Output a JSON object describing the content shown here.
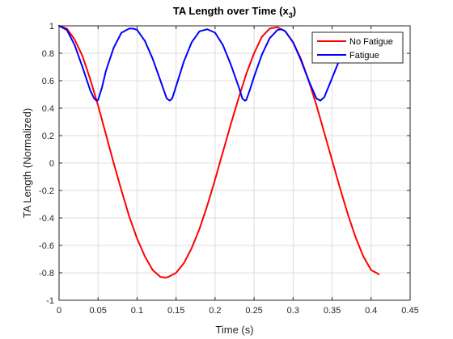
{
  "chart_data": {
    "type": "line",
    "title_main": "TA Length over Time (x",
    "title_sub": "3",
    "title_close": ")",
    "xlabel": "Time (s)",
    "ylabel": "TA Length (Normalized)",
    "xlim": [
      0,
      0.45
    ],
    "ylim": [
      -1,
      1
    ],
    "xticks": [
      0,
      0.05,
      0.1,
      0.15,
      0.2,
      0.25,
      0.3,
      0.35,
      0.4,
      0.45
    ],
    "xtick_labels": [
      "0",
      "0.05",
      "0.1",
      "0.15",
      "0.2",
      "0.25",
      "0.3",
      "0.35",
      "0.4",
      "0.45"
    ],
    "yticks": [
      -1,
      -0.8,
      -0.6,
      -0.4,
      -0.2,
      0,
      0.2,
      0.4,
      0.6,
      0.8,
      1
    ],
    "ytick_labels": [
      "-1",
      "-0.8",
      "-0.6",
      "-0.4",
      "-0.2",
      "0",
      "0.2",
      "0.4",
      "0.6",
      "0.8",
      "1"
    ],
    "grid": true,
    "legend_position": "top-right",
    "series": [
      {
        "name": "No Fatigue",
        "color": "#ff0000",
        "x": [
          0,
          0.01,
          0.02,
          0.03,
          0.04,
          0.05,
          0.06,
          0.07,
          0.08,
          0.09,
          0.1,
          0.11,
          0.12,
          0.13,
          0.137,
          0.14,
          0.15,
          0.16,
          0.17,
          0.18,
          0.19,
          0.2,
          0.21,
          0.22,
          0.23,
          0.24,
          0.25,
          0.26,
          0.27,
          0.28,
          0.29,
          0.3,
          0.31,
          0.32,
          0.33,
          0.34,
          0.35,
          0.36,
          0.37,
          0.38,
          0.39,
          0.4,
          0.41
        ],
        "y": [
          1.0,
          0.98,
          0.9,
          0.78,
          0.61,
          0.42,
          0.21,
          0.0,
          -0.2,
          -0.39,
          -0.55,
          -0.68,
          -0.78,
          -0.83,
          -0.835,
          -0.83,
          -0.8,
          -0.73,
          -0.62,
          -0.48,
          -0.31,
          -0.12,
          0.08,
          0.28,
          0.47,
          0.65,
          0.8,
          0.92,
          0.98,
          0.99,
          0.96,
          0.88,
          0.76,
          0.6,
          0.42,
          0.22,
          0.02,
          -0.18,
          -0.37,
          -0.54,
          -0.68,
          -0.78,
          -0.81
        ]
      },
      {
        "name": "Fatigue",
        "color": "#0000ff",
        "x": [
          0,
          0.01,
          0.02,
          0.03,
          0.04,
          0.045,
          0.048,
          0.05,
          0.055,
          0.06,
          0.07,
          0.08,
          0.09,
          0.095,
          0.1,
          0.11,
          0.12,
          0.13,
          0.138,
          0.142,
          0.145,
          0.15,
          0.16,
          0.17,
          0.18,
          0.19,
          0.2,
          0.21,
          0.22,
          0.23,
          0.235,
          0.238,
          0.24,
          0.245,
          0.25,
          0.26,
          0.27,
          0.28,
          0.285,
          0.29,
          0.3,
          0.31,
          0.32,
          0.33,
          0.335,
          0.34,
          0.35,
          0.36,
          0.37,
          0.38,
          0.384
        ],
        "y": [
          1.0,
          0.97,
          0.86,
          0.7,
          0.53,
          0.47,
          0.455,
          0.46,
          0.55,
          0.67,
          0.84,
          0.95,
          0.98,
          0.98,
          0.97,
          0.89,
          0.76,
          0.6,
          0.47,
          0.455,
          0.47,
          0.56,
          0.74,
          0.88,
          0.96,
          0.975,
          0.95,
          0.86,
          0.72,
          0.56,
          0.47,
          0.455,
          0.46,
          0.54,
          0.63,
          0.79,
          0.91,
          0.97,
          0.975,
          0.96,
          0.88,
          0.75,
          0.6,
          0.47,
          0.455,
          0.48,
          0.62,
          0.76,
          0.88,
          0.94,
          0.945
        ]
      }
    ]
  }
}
